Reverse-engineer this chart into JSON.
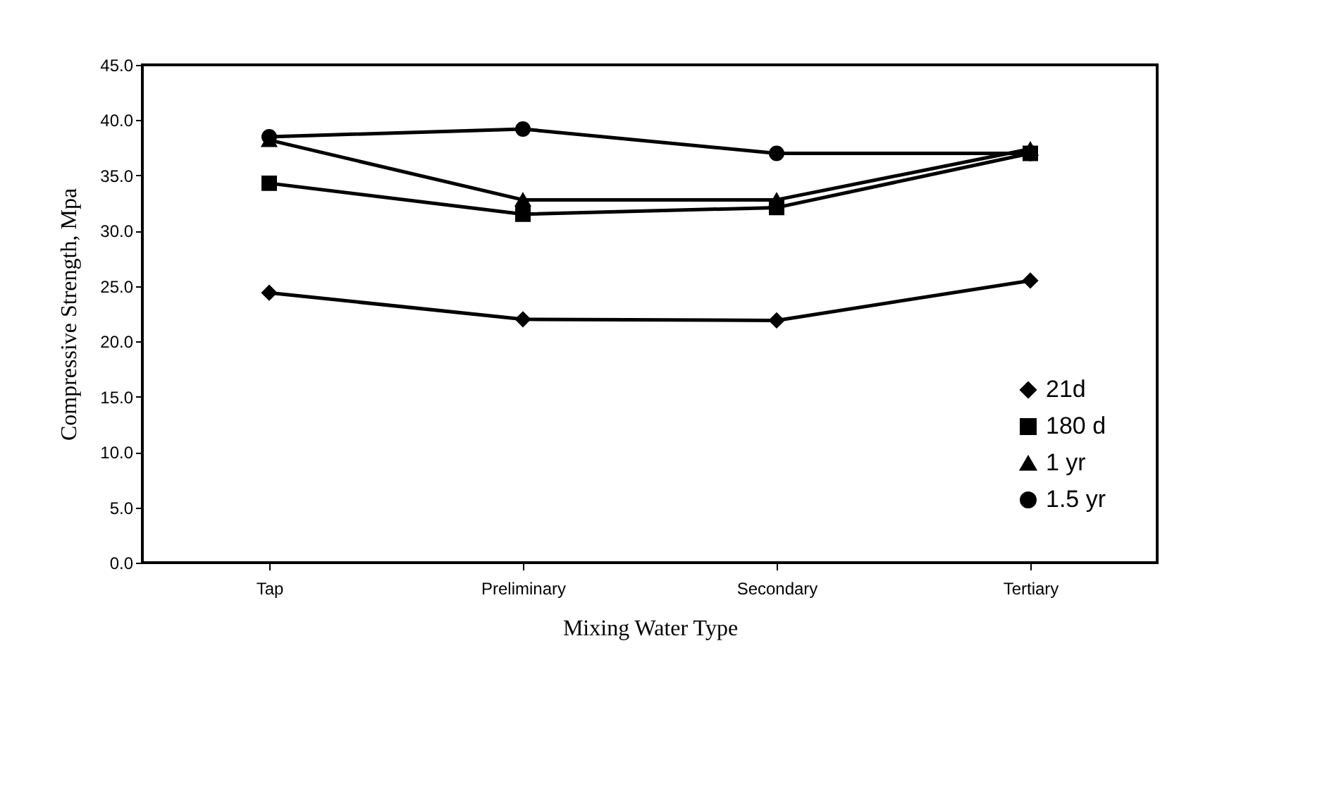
{
  "chart_data": {
    "type": "line",
    "xlabel": "Mixing Water Type",
    "ylabel": "Compressive Strength, Mpa",
    "categories": [
      "Tap",
      "Preliminary",
      "Secondary",
      "Tertiary"
    ],
    "series": [
      {
        "name": "21d",
        "color": "#000000",
        "marker": "diamond",
        "values": [
          24.4,
          22.0,
          21.9,
          25.5
        ]
      },
      {
        "name": "180 d",
        "color": "#000000",
        "marker": "square",
        "values": [
          34.3,
          31.5,
          32.1,
          37.0
        ]
      },
      {
        "name": "1 yr",
        "color": "#000000",
        "marker": "triangle",
        "values": [
          38.2,
          32.8,
          32.8,
          37.4
        ]
      },
      {
        "name": "1.5 yr",
        "color": "#000000",
        "marker": "circle",
        "values": [
          38.5,
          39.2,
          37.0,
          37.0
        ]
      }
    ],
    "ylim": [
      0,
      45
    ],
    "yticks": [
      {
        "value": 0,
        "label": "0.0"
      },
      {
        "value": 5,
        "label": "5.0"
      },
      {
        "value": 10,
        "label": "10.0"
      },
      {
        "value": 15,
        "label": "15.0"
      },
      {
        "value": 20,
        "label": "20.0"
      },
      {
        "value": 25,
        "label": "25.0"
      },
      {
        "value": 30,
        "label": "30.0"
      },
      {
        "value": 35,
        "label": "35.0"
      },
      {
        "value": 40,
        "label": "40.0"
      },
      {
        "value": 45,
        "label": "45.0"
      }
    ],
    "grid": false,
    "legend": "bottom right",
    "line_style": "solid"
  }
}
